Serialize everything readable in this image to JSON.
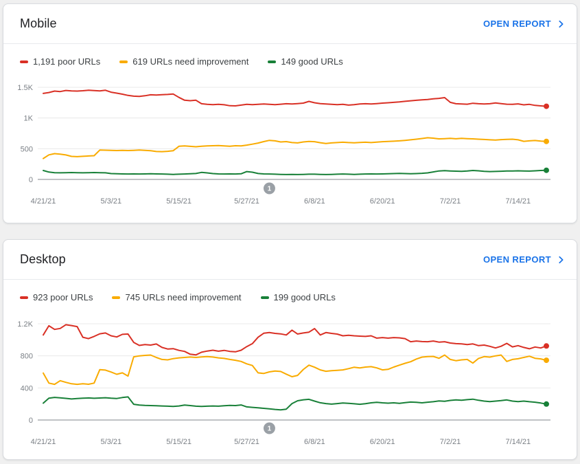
{
  "page": {
    "background": "#f0f0f0"
  },
  "colors": {
    "poor": "#d93025",
    "needs_improvement": "#f9ab00",
    "good": "#188038",
    "link": "#1a73e8",
    "annotation_badge": "#9aa0a6",
    "gridline": "#e8e8e8",
    "axis_line": "#80868b"
  },
  "charts": [
    {
      "title": "Mobile",
      "open_report_label": "OPEN REPORT",
      "legend": [
        {
          "label": "1,191 poor URLs",
          "color": "#d93025"
        },
        {
          "label": "619 URLs need improvement",
          "color": "#f9ab00"
        },
        {
          "label": "149 good URLs",
          "color": "#188038"
        }
      ],
      "chart_data": {
        "type": "line",
        "title": "Mobile Core Web Vitals URL status over time",
        "x_unit": "days since 4/21/21",
        "xticks": [
          {
            "label": "4/21/21",
            "day": 0
          },
          {
            "label": "5/3/21",
            "day": 12
          },
          {
            "label": "5/15/21",
            "day": 24
          },
          {
            "label": "5/27/21",
            "day": 36
          },
          {
            "label": "6/8/21",
            "day": 48
          },
          {
            "label": "6/20/21",
            "day": 60
          },
          {
            "label": "7/2/21",
            "day": 72
          },
          {
            "label": "7/14/21",
            "day": 84
          }
        ],
        "yticks": [
          {
            "label": "0",
            "value": 0
          },
          {
            "label": "500",
            "value": 500
          },
          {
            "label": "1K",
            "value": 1000
          },
          {
            "label": "1.5K",
            "value": 1500
          }
        ],
        "ylim": [
          0,
          1730
        ],
        "grid": true,
        "legend_position": "top",
        "annotation": {
          "label": "1",
          "day": 40
        },
        "series": [
          {
            "name": "poor URLs",
            "key": "poor",
            "color": "#d93025",
            "last_value": 1191,
            "values": [
              1400,
              1415,
              1438,
              1430,
              1448,
              1442,
              1438,
              1444,
              1452,
              1446,
              1442,
              1452,
              1420,
              1405,
              1388,
              1368,
              1355,
              1352,
              1362,
              1378,
              1375,
              1380,
              1383,
              1390,
              1335,
              1290,
              1282,
              1290,
              1232,
              1222,
              1218,
              1222,
              1216,
              1200,
              1198,
              1210,
              1222,
              1218,
              1222,
              1228,
              1222,
              1218,
              1225,
              1232,
              1228,
              1235,
              1242,
              1270,
              1248,
              1235,
              1228,
              1222,
              1218,
              1222,
              1210,
              1218,
              1228,
              1232,
              1228,
              1235,
              1242,
              1248,
              1255,
              1262,
              1272,
              1280,
              1288,
              1295,
              1302,
              1312,
              1320,
              1332,
              1255,
              1232,
              1228,
              1225,
              1240,
              1232,
              1228,
              1232,
              1245,
              1235,
              1225,
              1222,
              1230,
              1215,
              1222,
              1205,
              1198,
              1191
            ]
          },
          {
            "name": "URLs need improvement",
            "key": "needs-improvement",
            "color": "#f9ab00",
            "last_value": 619,
            "values": [
              340,
              400,
              420,
              412,
              398,
              375,
              370,
              376,
              382,
              386,
              478,
              476,
              472,
              470,
              474,
              470,
              473,
              478,
              474,
              468,
              455,
              452,
              458,
              468,
              540,
              545,
              538,
              532,
              540,
              546,
              548,
              552,
              545,
              540,
              548,
              545,
              558,
              574,
              592,
              616,
              636,
              628,
              610,
              616,
              600,
              594,
              610,
              618,
              614,
              598,
              584,
              594,
              600,
              606,
              600,
              597,
              602,
              606,
              600,
              608,
              615,
              618,
              622,
              628,
              636,
              645,
              655,
              666,
              678,
              672,
              660,
              664,
              668,
              662,
              668,
              664,
              660,
              655,
              650,
              645,
              640,
              648,
              652,
              655,
              645,
              620,
              628,
              634,
              624,
              619
            ]
          },
          {
            "name": "good URLs",
            "key": "good",
            "color": "#188038",
            "last_value": 149,
            "values": [
              145,
              120,
              110,
              108,
              110,
              112,
              110,
              108,
              110,
              112,
              110,
              108,
              95,
              92,
              90,
              88,
              90,
              88,
              90,
              92,
              90,
              88,
              85,
              82,
              85,
              88,
              92,
              96,
              114,
              106,
              95,
              90,
              88,
              90,
              88,
              92,
              128,
              118,
              96,
              90,
              88,
              85,
              82,
              80,
              82,
              80,
              82,
              85,
              85,
              82,
              80,
              82,
              85,
              88,
              85,
              82,
              85,
              88,
              90,
              88,
              90,
              92,
              95,
              98,
              95,
              92,
              95,
              100,
              106,
              122,
              138,
              142,
              138,
              134,
              132,
              138,
              145,
              140,
              132,
              128,
              130,
              133,
              136,
              138,
              140,
              138,
              135,
              140,
              145,
              149
            ]
          }
        ]
      }
    },
    {
      "title": "Desktop",
      "open_report_label": "OPEN REPORT",
      "legend": [
        {
          "label": "923 poor URLs",
          "color": "#d93025"
        },
        {
          "label": "745 URLs need improvement",
          "color": "#f9ab00"
        },
        {
          "label": "199 good URLs",
          "color": "#188038"
        }
      ],
      "chart_data": {
        "type": "line",
        "title": "Desktop Core Web Vitals URL status over time",
        "x_unit": "days since 4/21/21",
        "xticks": [
          {
            "label": "4/21/21",
            "day": 0
          },
          {
            "label": "5/3/21",
            "day": 12
          },
          {
            "label": "5/15/21",
            "day": 24
          },
          {
            "label": "5/27/21",
            "day": 36
          },
          {
            "label": "6/8/21",
            "day": 48
          },
          {
            "label": "6/20/21",
            "day": 60
          },
          {
            "label": "7/2/21",
            "day": 72
          },
          {
            "label": "7/14/21",
            "day": 84
          }
        ],
        "yticks": [
          {
            "label": "0",
            "value": 0
          },
          {
            "label": "400",
            "value": 400
          },
          {
            "label": "800",
            "value": 800
          },
          {
            "label": "1.2K",
            "value": 1200
          }
        ],
        "ylim": [
          0,
          1370
        ],
        "grid": true,
        "legend_position": "top",
        "annotation": {
          "label": "1",
          "day": 40
        },
        "series": [
          {
            "name": "poor URLs",
            "key": "poor",
            "color": "#d93025",
            "last_value": 923,
            "values": [
              1060,
              1175,
              1130,
              1142,
              1188,
              1178,
              1165,
              1032,
              1015,
              1042,
              1075,
              1085,
              1050,
              1035,
              1068,
              1072,
              968,
              930,
              940,
              934,
              948,
              905,
              885,
              890,
              868,
              855,
              820,
              812,
              845,
              860,
              870,
              858,
              868,
              855,
              850,
              870,
              915,
              952,
              1032,
              1082,
              1090,
              1080,
              1074,
              1060,
              1120,
              1072,
              1085,
              1095,
              1140,
              1060,
              1090,
              1080,
              1071,
              1050,
              1057,
              1050,
              1046,
              1042,
              1050,
              1021,
              1028,
              1021,
              1028,
              1024,
              1015,
              976,
              985,
              978,
              976,
              985,
              971,
              976,
              960,
              952,
              949,
              941,
              949,
              927,
              934,
              919,
              898,
              920,
              956,
              912,
              927,
              905,
              888,
              910,
              898,
              923
            ]
          },
          {
            "name": "URLs need improvement",
            "key": "needs-improvement",
            "color": "#f9ab00",
            "last_value": 745,
            "values": [
              585,
              460,
              445,
              490,
              470,
              452,
              445,
              452,
              446,
              460,
              628,
              622,
              598,
              570,
              588,
              548,
              788,
              800,
              806,
              810,
              780,
              755,
              750,
              765,
              775,
              780,
              785,
              780,
              786,
              790,
              785,
              775,
              768,
              755,
              745,
              730,
              700,
              680,
              588,
              580,
              600,
              610,
              605,
              572,
              540,
              556,
              630,
              684,
              658,
              625,
              608,
              615,
              620,
              625,
              640,
              658,
              650,
              660,
              665,
              650,
              625,
              632,
              660,
              684,
              707,
              727,
              760,
              784,
              790,
              793,
              770,
              810,
              755,
              740,
              750,
              755,
              710,
              768,
              790,
              784,
              800,
              810,
              730,
              755,
              764,
              780,
              795,
              770,
              762,
              745
            ]
          },
          {
            "name": "good URLs",
            "key": "good",
            "color": "#188038",
            "last_value": 199,
            "values": [
              210,
              272,
              282,
              276,
              270,
              262,
              268,
              272,
              275,
              271,
              274,
              278,
              272,
              268,
              280,
              288,
              196,
              186,
              182,
              180,
              178,
              175,
              172,
              170,
              175,
              186,
              180,
              172,
              170,
              172,
              175,
              172,
              178,
              182,
              180,
              188,
              164,
              158,
              152,
              146,
              140,
              132,
              126,
              135,
              205,
              240,
              252,
              258,
              236,
              215,
              205,
              198,
              205,
              212,
              208,
              202,
              196,
              204,
              214,
              220,
              214,
              210,
              214,
              208,
              216,
              224,
              220,
              214,
              222,
              228,
              238,
              234,
              244,
              250,
              246,
              254,
              260,
              246,
              236,
              230,
              236,
              242,
              250,
              236,
              230,
              236,
              228,
              222,
              212,
              199
            ]
          }
        ]
      }
    }
  ]
}
